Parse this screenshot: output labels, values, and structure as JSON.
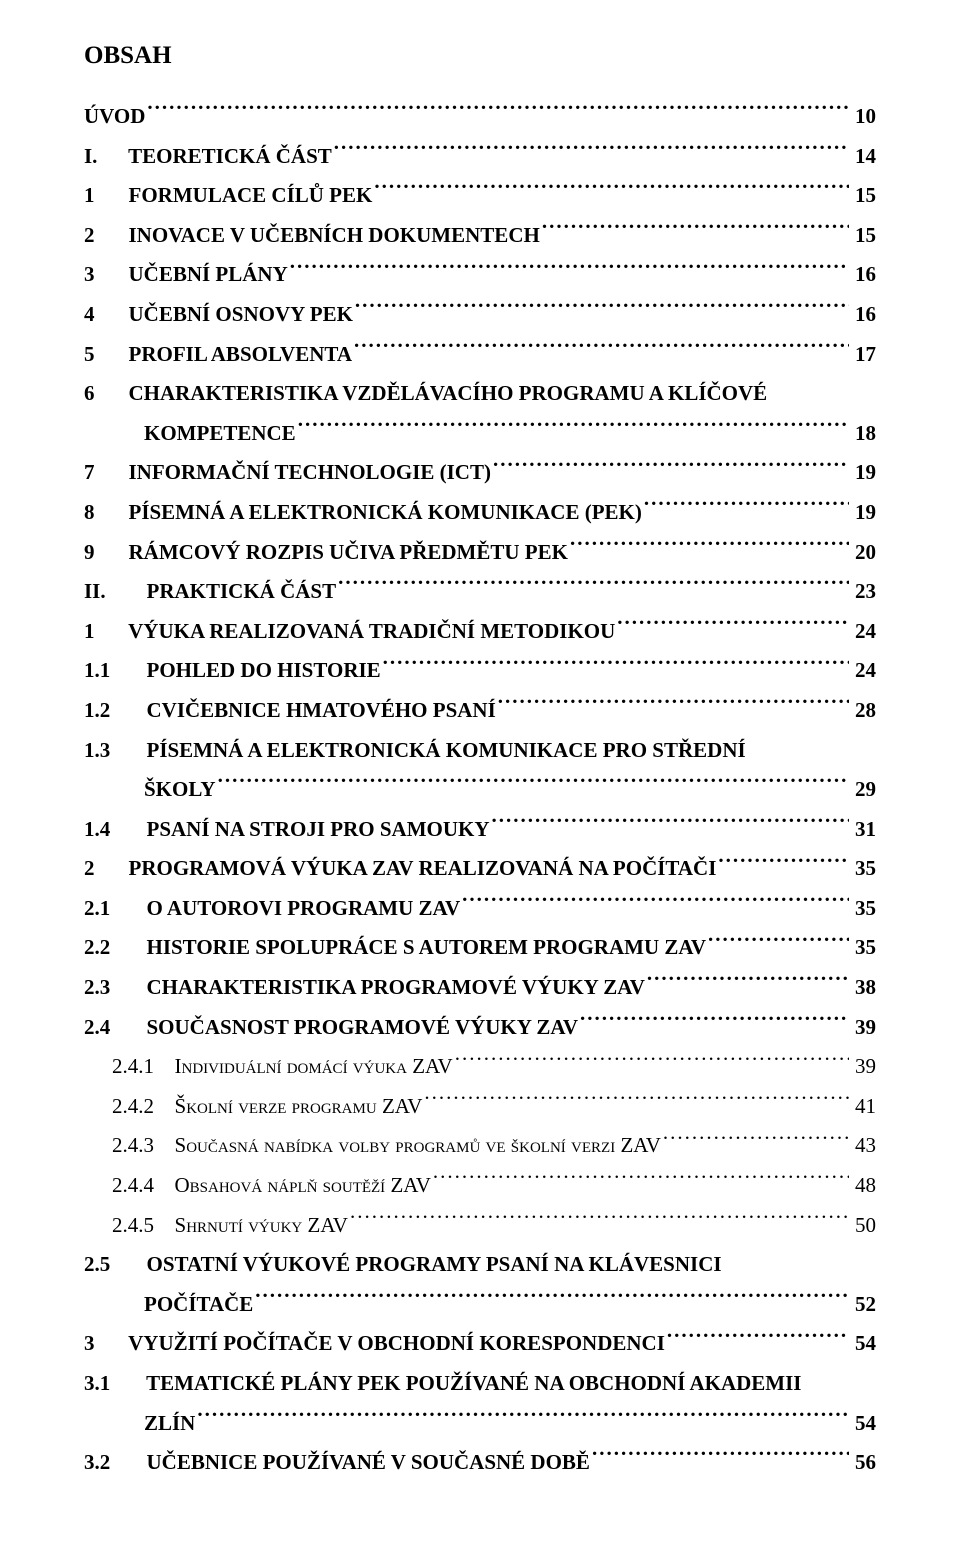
{
  "heading": "OBSAH",
  "entries": [
    {
      "level": 0,
      "label": "ÚVOD",
      "page": "10"
    },
    {
      "level": 0,
      "num": "I.",
      "label": "TEORETICKÁ ČÁST",
      "page": "14"
    },
    {
      "level": 0,
      "num": "1",
      "label": "FORMULACE CÍLŮ PEK",
      "page": "15"
    },
    {
      "level": 0,
      "num": "2",
      "label": "INOVACE V UČEBNÍCH DOKUMENTECH",
      "page": "15"
    },
    {
      "level": 0,
      "num": "3",
      "label": "UČEBNÍ PLÁNY",
      "page": "16"
    },
    {
      "level": 0,
      "num": "4",
      "label": "UČEBNÍ OSNOVY PEK",
      "page": "16"
    },
    {
      "level": 0,
      "num": "5",
      "label": "PROFIL ABSOLVENTA",
      "page": "17"
    },
    {
      "level": 0,
      "num": "6",
      "label": "CHARAKTERISTIKA VZDĚLÁVACÍHO PROGRAMU A KLÍČOVÉ",
      "cont": "KOMPETENCE",
      "page": "18"
    },
    {
      "level": 0,
      "num": "7",
      "label": "INFORMAČNÍ TECHNOLOGIE (ICT)",
      "page": "19"
    },
    {
      "level": 0,
      "num": "8",
      "label": "PÍSEMNÁ A ELEKTRONICKÁ KOMUNIKACE (PEK)",
      "page": "19"
    },
    {
      "level": 0,
      "num": "9",
      "label": "RÁMCOVÝ ROZPIS UČIVA PŘEDMĚTU PEK",
      "page": "20"
    },
    {
      "level": 0,
      "num": "II.",
      "label": "PRAKTICKÁ ČÁST",
      "page": "23"
    },
    {
      "level": 0,
      "num": "1",
      "label": "VÝUKA REALIZOVANÁ TRADIČNÍ METODIKOU",
      "page": "24"
    },
    {
      "level": 0,
      "num": "1.1",
      "label": "POHLED DO HISTORIE",
      "page": "24"
    },
    {
      "level": 0,
      "num": "1.2",
      "label": "CVIČEBNICE HMATOVÉHO PSANÍ",
      "page": "28"
    },
    {
      "level": 0,
      "num": "1.3",
      "label": "PÍSEMNÁ A ELEKTRONICKÁ KOMUNIKACE PRO STŘEDNÍ",
      "cont": "ŠKOLY",
      "page": "29"
    },
    {
      "level": 0,
      "num": "1.4",
      "label": "PSANÍ NA STROJI PRO SAMOUKY",
      "page": "31"
    },
    {
      "level": 0,
      "num": "2",
      "label": "PROGRAMOVÁ VÝUKA ZAV REALIZOVANÁ NA POČÍTAČI",
      "page": "35"
    },
    {
      "level": 0,
      "num": "2.1",
      "label": "O AUTOROVI PROGRAMU ZAV",
      "page": "35"
    },
    {
      "level": 0,
      "num": "2.2",
      "label": "HISTORIE SPOLUPRÁCE S AUTOREM PROGRAMU ZAV",
      "page": "35"
    },
    {
      "level": 0,
      "num": "2.3",
      "label": "CHARAKTERISTIKA PROGRAMOVÉ VÝUKY ZAV",
      "page": "38"
    },
    {
      "level": 0,
      "num": "2.4",
      "label": "SOUČASNOST PROGRAMOVÉ VÝUKY ZAV",
      "page": "39"
    },
    {
      "level": 1,
      "num": "2.4.1",
      "label_pre": "I",
      "label_sc": "NDIVIDUÁLNÍ DOMÁCÍ VÝUKA ",
      "label_post": "ZAV",
      "page": "39"
    },
    {
      "level": 1,
      "num": "2.4.2",
      "label_pre": "Š",
      "label_sc": "KOLNÍ VERZE PROGRAMU ",
      "label_post": "ZAV",
      "page": "41"
    },
    {
      "level": 1,
      "num": "2.4.3",
      "label_pre": "S",
      "label_sc": "OUČASNÁ NABÍDKA VOLBY PROGRAMŮ VE ŠKOLNÍ VERZI ",
      "label_post": "ZAV",
      "page": "43"
    },
    {
      "level": 1,
      "num": "2.4.4",
      "label_pre": "O",
      "label_sc": "BSAHOVÁ NÁPLŇ SOUTĚŽÍ ",
      "label_post": "ZAV",
      "page": "48"
    },
    {
      "level": 1,
      "num": "2.4.5",
      "label_pre": "S",
      "label_sc": "HRNUTÍ VÝUKY ",
      "label_post": "ZAV",
      "page": "50"
    },
    {
      "level": 0,
      "num": "2.5",
      "label": "OSTATNÍ VÝUKOVÉ PROGRAMY PSANÍ NA KLÁVESNICI",
      "cont": "POČÍTAČE",
      "page": "52"
    },
    {
      "level": 0,
      "num": "3",
      "label": "VYUŽITÍ POČÍTAČE V OBCHODNÍ KORESPONDENCI",
      "page": "54"
    },
    {
      "level": 0,
      "num": "3.1",
      "label": "TEMATICKÉ PLÁNY PEK POUŽÍVANÉ NA OBCHODNÍ AKADEMII",
      "cont": "ZLÍN",
      "page": "54"
    },
    {
      "level": 0,
      "num": "3.2",
      "label": "UČEBNICE POUŽÍVANÉ V SOUČASNÉ DOBĚ",
      "page": "56"
    }
  ]
}
